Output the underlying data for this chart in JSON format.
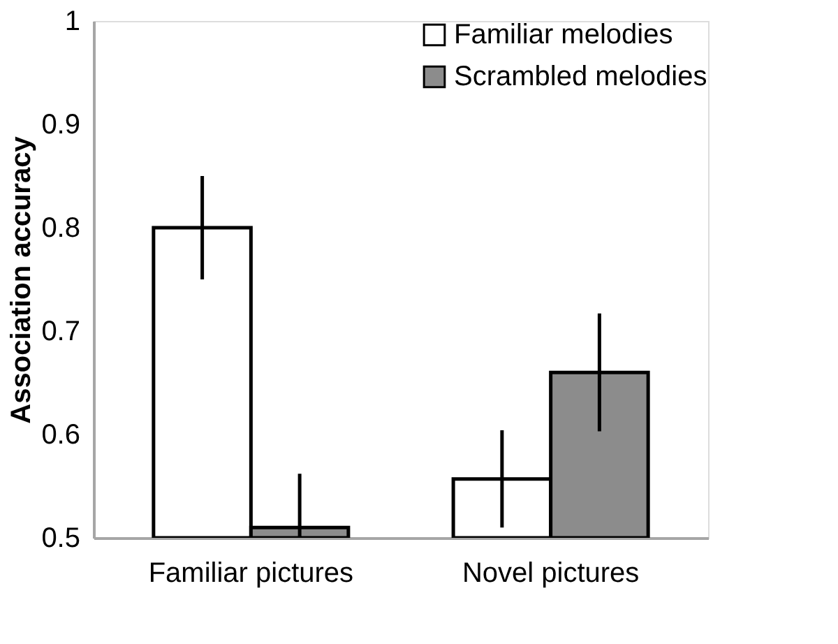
{
  "chart_data": {
    "type": "bar",
    "ylabel": "Association accuracy",
    "categories": [
      "Familiar pictures",
      "Novel pictures"
    ],
    "series": [
      {
        "name": "Familiar melodies",
        "color": "#ffffff",
        "values": [
          0.8,
          0.557
        ],
        "errors": [
          0.05,
          0.047
        ]
      },
      {
        "name": "Scrambled melodies",
        "color": "#8c8c8c",
        "values": [
          0.51,
          0.66
        ],
        "errors": [
          [
            0.5,
            0.562
          ],
          0.057
        ]
      }
    ],
    "ylim": [
      0.5,
      1
    ],
    "yticks": [
      0.5,
      0.6,
      0.7,
      0.8,
      0.9,
      1
    ],
    "grid": false,
    "legend": "top right"
  }
}
